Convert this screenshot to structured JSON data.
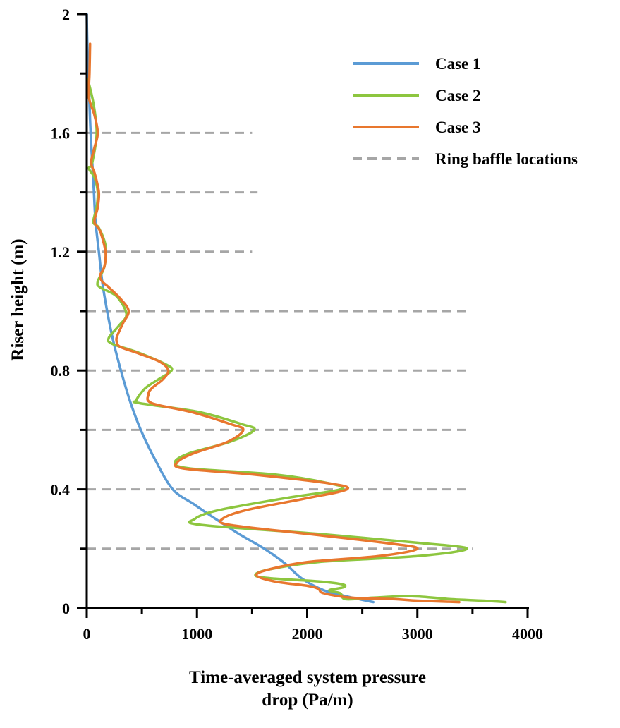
{
  "chart_data": {
    "type": "line",
    "orientation": "horizontal",
    "xlabel_line1": "Time-averaged system pressure",
    "xlabel_line2": "drop (Pa/m)",
    "ylabel": "Riser height (m)",
    "xlim": [
      0,
      4000
    ],
    "ylim": [
      0,
      2
    ],
    "x_ticks": [
      0,
      1000,
      2000,
      3000,
      4000
    ],
    "y_ticks": [
      0,
      0.4,
      0.8,
      1.2,
      1.6,
      2
    ],
    "grid": false,
    "legend_position": "top-right",
    "series": [
      {
        "name": "Case 1",
        "color": "#5b9bd5",
        "style": "solid",
        "points": [
          [
            0,
            2.0
          ],
          [
            5,
            1.9
          ],
          [
            15,
            1.8
          ],
          [
            25,
            1.7
          ],
          [
            35,
            1.6
          ],
          [
            50,
            1.5
          ],
          [
            65,
            1.4
          ],
          [
            80,
            1.3
          ],
          [
            110,
            1.2
          ],
          [
            140,
            1.1
          ],
          [
            185,
            1.0
          ],
          [
            240,
            0.9
          ],
          [
            310,
            0.8
          ],
          [
            390,
            0.7
          ],
          [
            490,
            0.6
          ],
          [
            620,
            0.5
          ],
          [
            780,
            0.4
          ],
          [
            970,
            0.35
          ],
          [
            1170,
            0.3
          ],
          [
            1380,
            0.25
          ],
          [
            1610,
            0.2
          ],
          [
            1800,
            0.15
          ],
          [
            1950,
            0.1
          ],
          [
            2150,
            0.06
          ],
          [
            2350,
            0.04
          ],
          [
            2600,
            0.02
          ]
        ]
      },
      {
        "name": "Case 2",
        "color": "#8dc63f",
        "style": "solid",
        "points": [
          [
            10,
            1.78
          ],
          [
            60,
            1.7
          ],
          [
            90,
            1.6
          ],
          [
            50,
            1.5
          ],
          [
            20,
            1.48
          ],
          [
            70,
            1.45
          ],
          [
            100,
            1.4
          ],
          [
            90,
            1.35
          ],
          [
            60,
            1.3
          ],
          [
            110,
            1.28
          ],
          [
            170,
            1.22
          ],
          [
            160,
            1.15
          ],
          [
            100,
            1.1
          ],
          [
            120,
            1.08
          ],
          [
            270,
            1.05
          ],
          [
            360,
            0.99
          ],
          [
            290,
            0.95
          ],
          [
            200,
            0.91
          ],
          [
            230,
            0.89
          ],
          [
            470,
            0.86
          ],
          [
            720,
            0.82
          ],
          [
            770,
            0.8
          ],
          [
            650,
            0.77
          ],
          [
            530,
            0.74
          ],
          [
            450,
            0.7
          ],
          [
            480,
            0.69
          ],
          [
            1020,
            0.66
          ],
          [
            1400,
            0.62
          ],
          [
            1520,
            0.6
          ],
          [
            1300,
            0.56
          ],
          [
            920,
            0.52
          ],
          [
            800,
            0.49
          ],
          [
            940,
            0.47
          ],
          [
            1700,
            0.45
          ],
          [
            2200,
            0.42
          ],
          [
            2300,
            0.4
          ],
          [
            1800,
            0.37
          ],
          [
            1200,
            0.33
          ],
          [
            980,
            0.3
          ],
          [
            1040,
            0.28
          ],
          [
            2100,
            0.25
          ],
          [
            3000,
            0.22
          ],
          [
            3450,
            0.2
          ],
          [
            3000,
            0.175
          ],
          [
            2100,
            0.155
          ],
          [
            1650,
            0.13
          ],
          [
            1530,
            0.11
          ],
          [
            1680,
            0.1
          ],
          [
            2100,
            0.09
          ],
          [
            2320,
            0.08
          ],
          [
            2330,
            0.07
          ],
          [
            2200,
            0.06
          ],
          [
            2300,
            0.05
          ],
          [
            2350,
            0.03
          ],
          [
            2600,
            0.035
          ],
          [
            2950,
            0.04
          ],
          [
            3300,
            0.03
          ],
          [
            3600,
            0.025
          ],
          [
            3800,
            0.02
          ]
        ]
      },
      {
        "name": "Case 3",
        "color": "#e8772e",
        "style": "solid",
        "points": [
          [
            30,
            1.9
          ],
          [
            25,
            1.8
          ],
          [
            20,
            1.72
          ],
          [
            70,
            1.66
          ],
          [
            100,
            1.6
          ],
          [
            70,
            1.55
          ],
          [
            40,
            1.5
          ],
          [
            75,
            1.46
          ],
          [
            110,
            1.4
          ],
          [
            100,
            1.35
          ],
          [
            70,
            1.3
          ],
          [
            120,
            1.27
          ],
          [
            170,
            1.2
          ],
          [
            160,
            1.15
          ],
          [
            120,
            1.12
          ],
          [
            140,
            1.1
          ],
          [
            200,
            1.08
          ],
          [
            310,
            1.04
          ],
          [
            380,
            1.0
          ],
          [
            330,
            0.96
          ],
          [
            280,
            0.92
          ],
          [
            270,
            0.9
          ],
          [
            300,
            0.88
          ],
          [
            450,
            0.86
          ],
          [
            660,
            0.83
          ],
          [
            740,
            0.8
          ],
          [
            690,
            0.77
          ],
          [
            590,
            0.74
          ],
          [
            560,
            0.72
          ],
          [
            590,
            0.69
          ],
          [
            950,
            0.66
          ],
          [
            1300,
            0.62
          ],
          [
            1420,
            0.6
          ],
          [
            1280,
            0.56
          ],
          [
            960,
            0.52
          ],
          [
            820,
            0.49
          ],
          [
            880,
            0.47
          ],
          [
            1500,
            0.45
          ],
          [
            2200,
            0.42
          ],
          [
            2360,
            0.4
          ],
          [
            2000,
            0.37
          ],
          [
            1450,
            0.33
          ],
          [
            1230,
            0.3
          ],
          [
            1300,
            0.28
          ],
          [
            2000,
            0.25
          ],
          [
            2700,
            0.22
          ],
          [
            3000,
            0.2
          ],
          [
            2650,
            0.175
          ],
          [
            2000,
            0.155
          ],
          [
            1650,
            0.13
          ],
          [
            1540,
            0.11
          ],
          [
            1700,
            0.09
          ],
          [
            2000,
            0.075
          ],
          [
            2100,
            0.065
          ],
          [
            2150,
            0.05
          ],
          [
            2400,
            0.035
          ],
          [
            2800,
            0.03
          ],
          [
            3000,
            0.025
          ],
          [
            3380,
            0.02
          ]
        ]
      }
    ],
    "reference_lines": {
      "name": "Ring baffle locations",
      "color": "#a6a6a6",
      "style": "dashed",
      "lines": [
        {
          "y": 1.6,
          "x_start": 0,
          "x_end": 1500
        },
        {
          "y": 1.4,
          "x_start": 0,
          "x_end": 1550
        },
        {
          "y": 1.2,
          "x_start": 0,
          "x_end": 1500
        },
        {
          "y": 1.0,
          "x_start": 0,
          "x_end": 3450
        },
        {
          "y": 0.8,
          "x_start": 0,
          "x_end": 3450
        },
        {
          "y": 0.6,
          "x_start": 0,
          "x_end": 3450
        },
        {
          "y": 0.4,
          "x_start": 0,
          "x_end": 3450
        },
        {
          "y": 0.2,
          "x_start": 0,
          "x_end": 3500
        }
      ]
    },
    "legend": [
      {
        "label": "Case 1",
        "color": "#5b9bd5",
        "style": "solid"
      },
      {
        "label": "Case 2",
        "color": "#8dc63f",
        "style": "solid"
      },
      {
        "label": "Case 3",
        "color": "#e8772e",
        "style": "solid"
      },
      {
        "label": "Ring baffle locations",
        "color": "#a6a6a6",
        "style": "dashed"
      }
    ]
  }
}
